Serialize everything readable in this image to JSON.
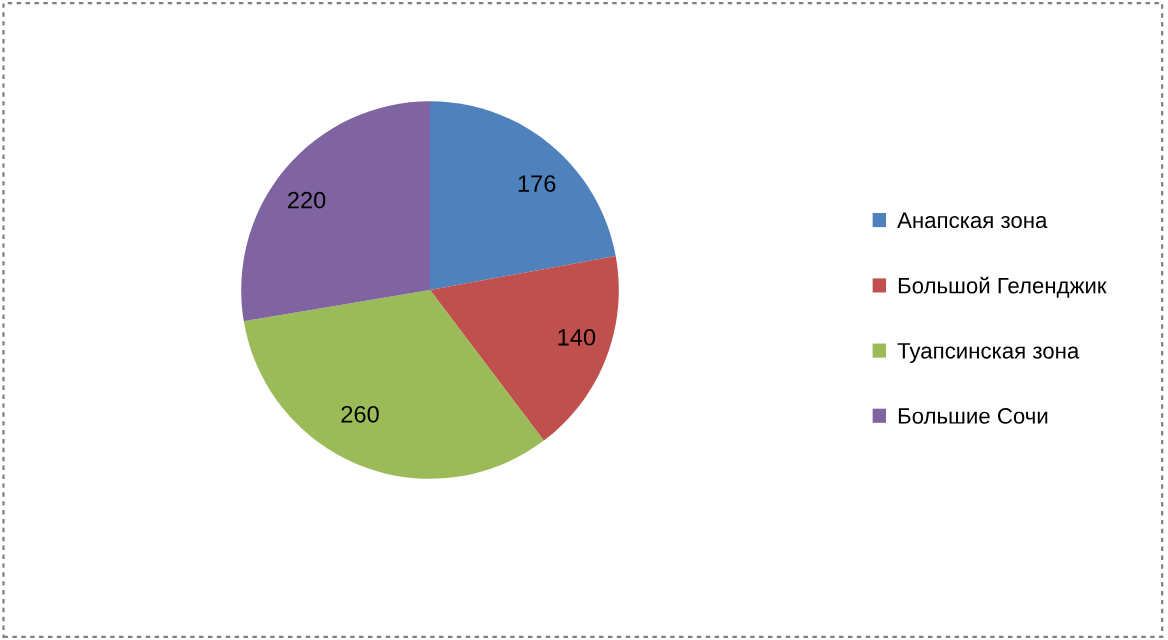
{
  "chart_data": {
    "type": "pie",
    "categories": [
      "Анапская зона",
      "Большой Геленджик",
      "Туапсинская зона",
      "Большие Сочи"
    ],
    "values": [
      176,
      140,
      260,
      220
    ],
    "colors": [
      "#4f81bd",
      "#c0504d",
      "#9bbb59",
      "#8064a2"
    ],
    "data_labels": true,
    "legend": "right"
  }
}
